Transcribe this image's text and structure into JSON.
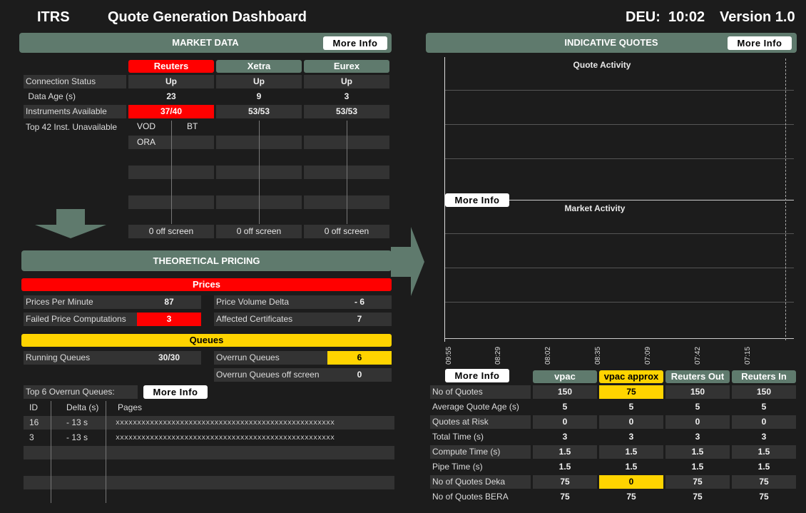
{
  "header": {
    "brand": "ITRS",
    "title": "Quote Generation Dashboard",
    "region": "DEU:",
    "time": "10:02",
    "version": "Version 1.0"
  },
  "market_data": {
    "title": "MARKET DATA",
    "more_info": "More Info",
    "sources": [
      "Reuters",
      "Xetra",
      "Eurex"
    ],
    "rows": [
      {
        "label": "Connection Status",
        "values": [
          "Up",
          "Up",
          "Up"
        ]
      },
      {
        "label": " Data Age (s)",
        "values": [
          "23",
          "9",
          "3"
        ]
      },
      {
        "label": "Instruments Available",
        "values": [
          "37/40",
          "53/53",
          "53/53"
        ]
      }
    ],
    "top_label": "Top 42 Inst. Unavailable",
    "unavailable": {
      "reuters": [
        "VOD",
        "BT",
        "ORA"
      ]
    },
    "off_screen": [
      "0 off screen",
      "0 off screen",
      "0 off screen"
    ]
  },
  "theoretical_pricing": {
    "title": "THEORETICAL PRICING",
    "prices_title": "Prices",
    "prices": [
      {
        "label": "Prices Per Minute",
        "value": "87"
      },
      {
        "label": "Failed Price Computations",
        "value": "3"
      },
      {
        "label": "Price Volume Delta",
        "value": "- 6"
      },
      {
        "label": "Affected Certificates",
        "value": "7"
      }
    ],
    "queues_title": "Queues",
    "queues": [
      {
        "label": "Running Queues",
        "value": "30/30"
      },
      {
        "label": "Overrun Queues",
        "value": "6"
      },
      {
        "label": "Overrun Queues off screen",
        "value": "0"
      }
    ],
    "top_overrun_label": "Top 6 Overrun Queues:",
    "more_info": "More Info",
    "table_headers": [
      "ID",
      "Delta (s)",
      "Pages"
    ],
    "table_rows": [
      {
        "id": "16",
        "delta": "- 13 s",
        "pages": "xxxxxxxxxxxxxxxxxxxxxxxxxxxxxxxxxxxxxxxxxxxxxxxxxxx"
      },
      {
        "id": "3",
        "delta": "- 13 s",
        "pages": "xxxxxxxxxxxxxxxxxxxxxxxxxxxxxxxxxxxxxxxxxxxxxxxxxxx"
      }
    ]
  },
  "indicative_quotes": {
    "title": "INDICATIVE QUOTES",
    "more_info": "More Info",
    "chart_more_info": "More Info",
    "table_more_info": "More Info",
    "quote_activity": "Quote Activity",
    "market_activity": "Market Activity",
    "x_ticks": [
      "09:55",
      "08:29",
      "08:02",
      "08:35",
      "07:09",
      "07:42",
      "07:15"
    ],
    "columns": [
      "vpac",
      "vpac approx",
      "Reuters Out",
      "Reuters In"
    ],
    "rows": [
      {
        "label": "No of Quotes",
        "values": [
          "150",
          "75",
          "150",
          "150"
        ]
      },
      {
        "label": "Average Quote Age (s)",
        "values": [
          "5",
          "5",
          "5",
          "5"
        ]
      },
      {
        "label": "Quotes at Risk",
        "values": [
          "0",
          "0",
          "0",
          "0"
        ]
      },
      {
        "label": "Total Time (s)",
        "values": [
          "3",
          "3",
          "3",
          "3"
        ]
      },
      {
        "label": "Compute Time (s)",
        "values": [
          "1.5",
          "1.5",
          "1.5",
          "1.5"
        ]
      },
      {
        "label": "Pipe Time (s)",
        "values": [
          "1.5",
          "1.5",
          "1.5",
          "1.5"
        ]
      },
      {
        "label": "No of Quotes Deka",
        "values": [
          "75",
          "0",
          "75",
          "75"
        ]
      },
      {
        "label": "No of Quotes BERA",
        "values": [
          "75",
          "75",
          "75",
          "75"
        ]
      }
    ]
  },
  "colors": {
    "accent_green": "#5f7a6d",
    "alert_red": "#ff0000",
    "warn_yellow": "#ffd400"
  }
}
